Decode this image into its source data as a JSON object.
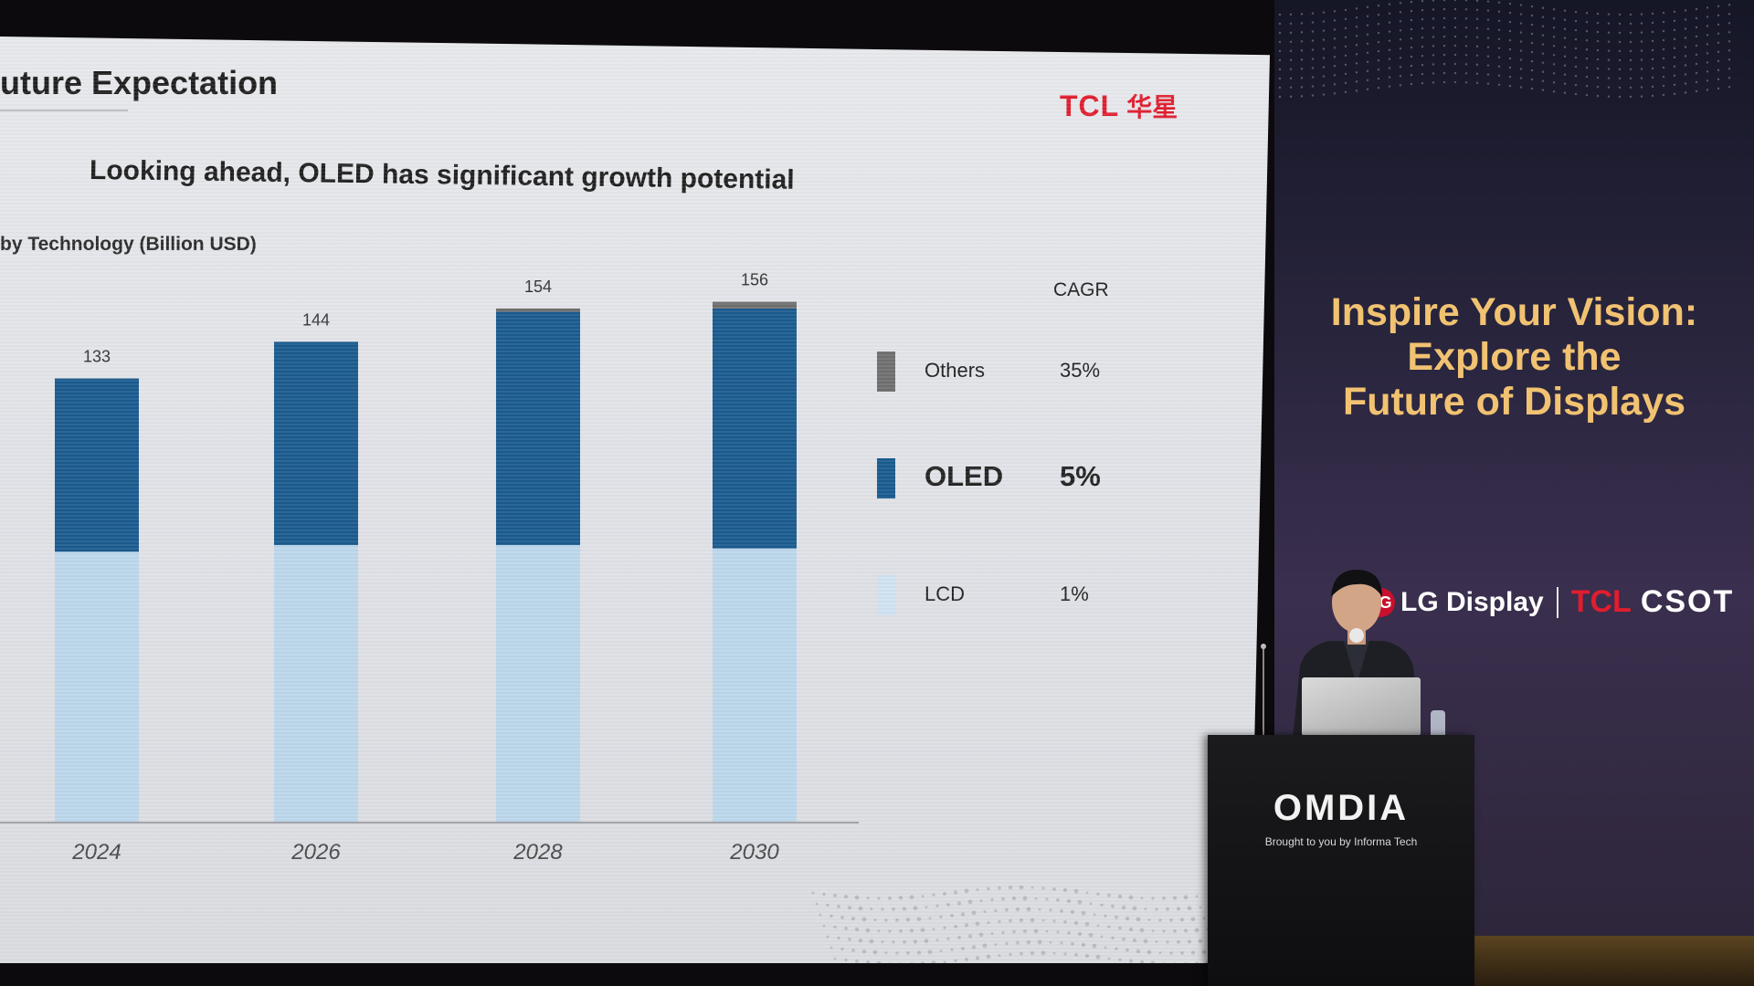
{
  "slide": {
    "title": "uture Expectation",
    "subtitle": "Looking ahead, OLED has significant growth potential",
    "chart_label": "by Technology (Billion USD)",
    "brand_logo": {
      "latin": "TCL",
      "chinese": "华星",
      "color": "#e01d2e"
    }
  },
  "chart_data": {
    "type": "bar",
    "stacked": true,
    "title": "by Technology (Billion USD)",
    "categories": [
      "2024",
      "2026",
      "2028",
      "2030"
    ],
    "totals": [
      133,
      144,
      154,
      156
    ],
    "total_labels": [
      "133",
      "144",
      "154",
      "156"
    ],
    "series": [
      {
        "name": "LCD",
        "values": [
          81,
          83,
          83,
          82
        ],
        "color": "#bcd6ea",
        "cagr": "1%"
      },
      {
        "name": "OLED",
        "values": [
          52,
          61,
          70,
          72
        ],
        "color": "#1a5a8e",
        "cagr": "5%"
      },
      {
        "name": "Others",
        "values": [
          0,
          0,
          1,
          2
        ],
        "color": "#6f6f6f",
        "cagr": "35%"
      }
    ],
    "legend": {
      "header": "CAGR",
      "position": "right",
      "items": [
        {
          "name": "Others",
          "cagr": "35%",
          "color": "#6f6f6f"
        },
        {
          "name": "OLED",
          "cagr": "5%",
          "color": "#1a5a8e"
        },
        {
          "name": "LCD",
          "cagr": "1%",
          "color": "#cfe2f1"
        }
      ]
    },
    "ylim": [
      0,
      160
    ],
    "grid": false
  },
  "banner": {
    "headline": [
      "Inspire Your Vision:",
      "Explore the",
      "Future of Displays"
    ],
    "headline_color": "#f1c271",
    "sponsors": {
      "lg_mark": "LG",
      "lg": "LG Display",
      "tcl": "TCL",
      "csot": "CSOT"
    }
  },
  "podium": {
    "logo": "OMDIA",
    "tagline": "Brought to you by Informa Tech"
  }
}
